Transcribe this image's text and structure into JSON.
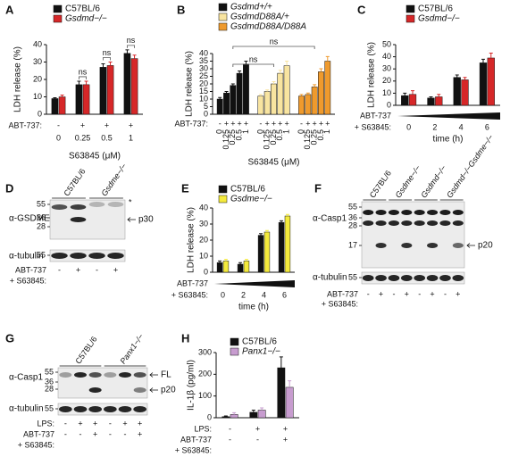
{
  "chart_data": [
    {
      "type": "bar",
      "letter": "A",
      "ylabel": "LDH release (%)",
      "ylim": [
        0,
        40
      ],
      "yticks": [
        0,
        10,
        20,
        30,
        40
      ],
      "categories": [
        "0",
        "0.25",
        "0.5",
        "1"
      ],
      "xlabel": "S63845 (μM)",
      "rows": [
        {
          "label": "ABT-737:",
          "cells": [
            "-",
            "+",
            "+",
            "+"
          ]
        }
      ],
      "series": [
        {
          "name": "C57BL/6",
          "color": "#111111",
          "values": [
            9,
            17,
            27,
            35
          ],
          "errors": [
            0.5,
            2,
            2,
            2
          ]
        },
        {
          "name": "Gsdmd−/−",
          "color": "#d62728",
          "values": [
            10,
            17,
            28,
            32
          ],
          "errors": [
            1,
            2,
            2,
            2
          ]
        }
      ],
      "annotations": [
        "ns",
        "ns",
        "ns"
      ]
    },
    {
      "type": "bar",
      "letter": "B",
      "grouping": "series",
      "ylabel": "LDH release (%)",
      "ylim": [
        0,
        40
      ],
      "yticks": [
        0,
        5,
        10,
        15,
        20,
        25,
        30,
        35,
        40
      ],
      "categories": [
        "0",
        "0.125",
        "0.25",
        "0.5",
        "1"
      ],
      "xlabel": "S63845 (μM)",
      "rows": [
        {
          "label": "ABT-737:",
          "cells": [
            "-",
            "+",
            "+",
            "+",
            "+"
          ]
        }
      ],
      "series": [
        {
          "name": "Gsdmd+/+",
          "color": "#111111",
          "values": [
            10,
            14,
            19,
            27,
            33
          ],
          "errors": [
            1,
            1,
            1,
            1.5,
            2
          ]
        },
        {
          "name": "GsdmdD88A/+",
          "color": "#f8e4a0",
          "values": [
            12,
            15,
            20,
            27,
            32
          ],
          "errors": [
            1,
            1,
            1.5,
            2,
            3
          ]
        },
        {
          "name": "GsdmdD88A/D88A",
          "color": "#ef9a2d",
          "values": [
            12,
            13,
            18,
            28,
            35
          ],
          "errors": [
            1,
            1,
            1.5,
            2,
            3
          ]
        }
      ],
      "annotations": [
        "ns",
        "ns"
      ]
    },
    {
      "type": "bar",
      "letter": "C",
      "ylabel": "LDH release (%)",
      "ylim": [
        0,
        50
      ],
      "yticks": [
        0,
        10,
        20,
        30,
        40,
        50
      ],
      "categories": [
        "0",
        "2",
        "4",
        "6"
      ],
      "xlabel": "time (h)",
      "rows": [
        {
          "label": "ABT-737"
        },
        {
          "label": "+ S63845:"
        }
      ],
      "series": [
        {
          "name": "C57BL/6",
          "color": "#111111",
          "values": [
            8,
            6,
            23,
            35
          ],
          "errors": [
            2,
            1,
            2,
            3
          ]
        },
        {
          "name": "Gsdmd−/−",
          "color": "#d62728",
          "values": [
            9,
            7,
            21,
            39
          ],
          "errors": [
            3,
            2,
            2,
            4
          ]
        }
      ]
    },
    {
      "type": "bar",
      "letter": "E",
      "ylabel": "LDH release (%)",
      "ylim": [
        0,
        40
      ],
      "yticks": [
        0,
        10,
        20,
        30,
        40
      ],
      "categories": [
        "0",
        "2",
        "4",
        "6"
      ],
      "xlabel": "time (h)",
      "rows": [
        {
          "label": "ABT-737"
        },
        {
          "label": "+ S63845:"
        }
      ],
      "series": [
        {
          "name": "C57BL/6",
          "color": "#111111",
          "values": [
            6,
            5,
            23,
            31
          ],
          "errors": [
            1,
            1,
            1,
            1
          ]
        },
        {
          "name": "Gsdme−/−",
          "color": "#f4ea3c",
          "values": [
            7,
            7,
            25,
            35
          ],
          "errors": [
            1,
            1,
            1,
            1
          ]
        }
      ]
    },
    {
      "type": "bar",
      "letter": "H",
      "ylabel": "IL-1β (pg/ml)",
      "ylim": [
        0,
        300
      ],
      "yticks": [
        0,
        100,
        200,
        300
      ],
      "categories": [
        null,
        null,
        null
      ],
      "rows": [
        {
          "label": "LPS:",
          "cells": [
            "-",
            "+",
            "+"
          ]
        },
        {
          "label": "ABT-737",
          "cells": [
            "-",
            "-",
            "+"
          ]
        },
        {
          "label": "+ S63845:"
        }
      ],
      "series": [
        {
          "name": "C57BL/6",
          "color": "#111111",
          "values": [
            5,
            25,
            230
          ],
          "errors": [
            3,
            10,
            50
          ]
        },
        {
          "name": "Panx1−/−",
          "color": "#c79ccf",
          "values": [
            15,
            35,
            140
          ],
          "errors": [
            8,
            10,
            30
          ]
        }
      ]
    }
  ],
  "blots": [
    {
      "letter": "D",
      "lane_titles": [
        "C57BL/6",
        "Gsdme−/−"
      ],
      "markers": [
        "55",
        "36",
        "28",
        "55"
      ],
      "antibodies": [
        "α-GSDME",
        "α-tubulin"
      ],
      "arrows": [
        "p30"
      ],
      "asterisk": "*",
      "rows": [
        {
          "label": "ABT-737",
          "cells": [
            "-",
            "+",
            "-",
            "+"
          ]
        },
        {
          "label": "+ S63845:"
        }
      ]
    },
    {
      "letter": "F",
      "lane_titles": [
        "C57BL/6",
        "Gsdme−/−",
        "Gsdmd−/−",
        "Gsdmd−/−Gsdme−/−"
      ],
      "markers": [
        "55",
        "36",
        "28",
        "17",
        "55"
      ],
      "antibodies": [
        "α-Casp1",
        "α-tubulin"
      ],
      "arrows": [
        "p20"
      ],
      "rows": [
        {
          "label": "ABT-737",
          "cells": [
            "-",
            "+",
            "-",
            "+",
            "-",
            "+",
            "-",
            "+"
          ]
        },
        {
          "label": "+ S63845:"
        }
      ]
    },
    {
      "letter": "G",
      "lane_titles": [
        "C57BL/6",
        "Panx1−/−"
      ],
      "markers": [
        "55",
        "36",
        "28",
        "55"
      ],
      "antibodies": [
        "α-Casp1",
        "α-tubulin"
      ],
      "arrows": [
        "FL",
        "p20"
      ],
      "rows": [
        {
          "label": "LPS:",
          "cells": [
            "-",
            "+",
            "+",
            "-",
            "+",
            "+"
          ]
        },
        {
          "label": "ABT-737",
          "cells": [
            "-",
            "-",
            "+",
            "-",
            "-",
            "+"
          ]
        },
        {
          "label": "+ S63845:"
        }
      ]
    }
  ]
}
